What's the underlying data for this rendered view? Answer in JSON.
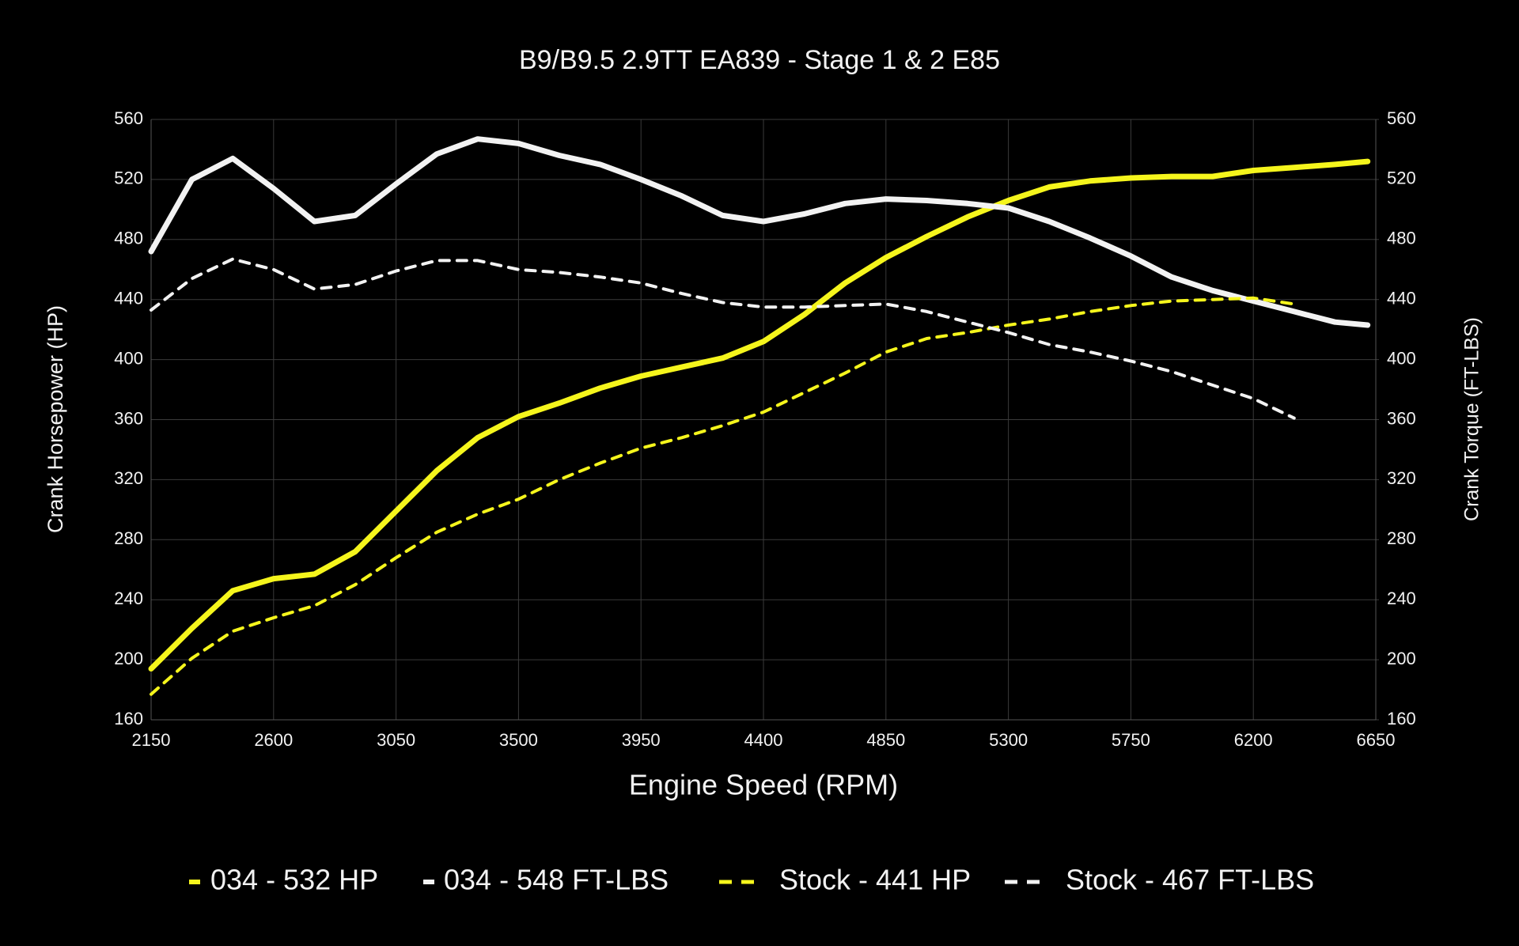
{
  "chart_data": {
    "type": "line",
    "title": "B9/B9.5 2.9TT EA839 - Stage 1 & 2 E85",
    "x_label": "Engine Speed (RPM)",
    "y_label": "Crank Horsepower (HP)",
    "y2_label": "Crank Torque (FT-LBS)",
    "x": [
      2150,
      2300,
      2450,
      2600,
      2750,
      2900,
      3050,
      3200,
      3350,
      3500,
      3650,
      3800,
      3950,
      4100,
      4250,
      4400,
      4550,
      4700,
      4850,
      5000,
      5150,
      5300,
      5450,
      5600,
      5750,
      5900,
      6050,
      6200,
      6350,
      6500,
      6620
    ],
    "series": [
      {
        "name": "034 - 532 HP",
        "color": "#f5f51c",
        "style": "solid",
        "axis": "y",
        "values": [
          194,
          221,
          246,
          254,
          257,
          272,
          299,
          326,
          348,
          362,
          371,
          381,
          389,
          395,
          401,
          412,
          430,
          451,
          468,
          482,
          495,
          506,
          515,
          519,
          521,
          522,
          522,
          526,
          528,
          530,
          532
        ]
      },
      {
        "name": "034 - 548 FT-LBS",
        "color": "#f2f2f2",
        "style": "solid",
        "axis": "y2",
        "values": [
          472,
          520,
          534,
          514,
          492,
          496,
          517,
          537,
          547,
          544,
          536,
          530,
          520,
          509,
          496,
          492,
          497,
          504,
          507,
          506,
          504,
          501,
          492,
          481,
          469,
          455,
          446,
          439,
          432,
          425,
          423
        ]
      },
      {
        "name": "Stock - 441 HP",
        "color": "#f5f51c",
        "style": "dashed",
        "axis": "y",
        "values": [
          177,
          201,
          219,
          228,
          236,
          250,
          268,
          285,
          297,
          307,
          320,
          331,
          341,
          348,
          356,
          365,
          378,
          391,
          405,
          414,
          418,
          423,
          427,
          432,
          436,
          439,
          440,
          441,
          437,
          null,
          null
        ]
      },
      {
        "name": "Stock - 467 FT-LBS",
        "color": "#f2f2f2",
        "style": "dashed",
        "axis": "y2",
        "values": [
          433,
          454,
          467,
          460,
          447,
          450,
          459,
          466,
          466,
          460,
          458,
          455,
          451,
          444,
          438,
          435,
          435,
          436,
          437,
          432,
          425,
          418,
          410,
          405,
          399,
          392,
          383,
          374,
          361,
          null,
          null
        ]
      }
    ],
    "xlim": [
      2150,
      6650
    ],
    "xticks": [
      2150,
      2600,
      3050,
      3500,
      3950,
      4400,
      4850,
      5300,
      5750,
      6200,
      6650
    ],
    "ylim": [
      160,
      560
    ],
    "yticks": [
      160,
      200,
      240,
      280,
      320,
      360,
      400,
      440,
      480,
      520,
      560
    ],
    "y2lim": [
      160,
      560
    ],
    "y2ticks": [
      160,
      200,
      240,
      280,
      320,
      360,
      400,
      440,
      480,
      520,
      560
    ],
    "grid": true
  }
}
